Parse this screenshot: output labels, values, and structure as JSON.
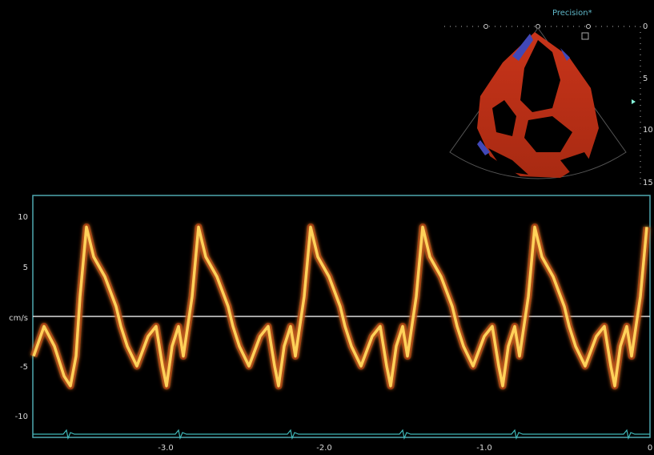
{
  "header": {
    "label": "Precision*"
  },
  "depth_scale": {
    "labels": [
      "0",
      "5",
      "10",
      "15"
    ]
  },
  "doppler": {
    "y_labels": [
      "10",
      "5",
      "cm/s",
      "-5",
      "-10"
    ],
    "x_labels": [
      "-3.0",
      "-2.0",
      "-1.0",
      "0"
    ]
  }
}
